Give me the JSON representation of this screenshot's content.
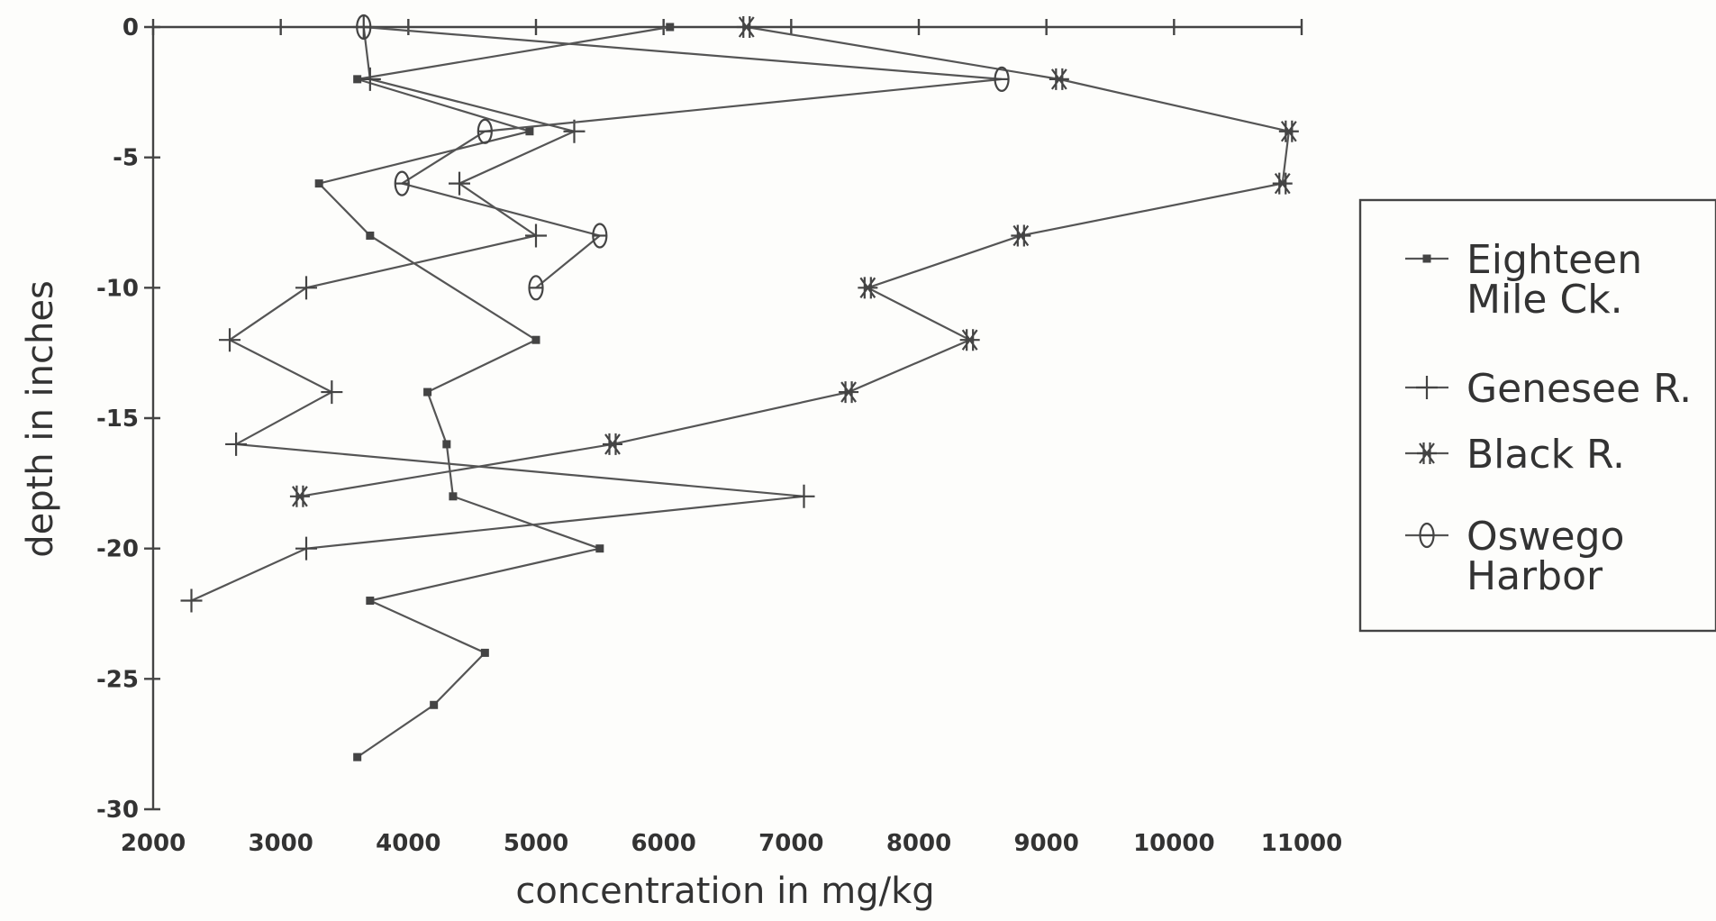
{
  "chart_data": {
    "type": "line",
    "xlabel": "concentration in mg/kg",
    "ylabel": "depth in inches",
    "xlim": [
      2000,
      11000
    ],
    "ylim": [
      -30,
      0
    ],
    "x_ticks": [
      2000,
      3000,
      4000,
      5000,
      6000,
      7000,
      8000,
      9000,
      10000,
      11000
    ],
    "y_ticks": [
      0,
      -5,
      -10,
      -15,
      -20,
      -25,
      -30
    ],
    "x_tick_labels": [
      "2000",
      "3000",
      "4000",
      "5000",
      "6000",
      "7000",
      "8000",
      "9000",
      "10000",
      "11000"
    ],
    "y_tick_labels": [
      "0",
      "-5",
      "-10",
      "-15",
      "-20",
      "-25",
      "-30"
    ],
    "grid": false,
    "legend_position": "right",
    "series": [
      {
        "name": "Eighteen Mile Ck.",
        "legend_lines": [
          "Eighteen",
          "Mile Ck."
        ],
        "marker": "square",
        "points": [
          [
            6050,
            0
          ],
          [
            3600,
            -2
          ],
          [
            4950,
            -4
          ],
          [
            3300,
            -6
          ],
          [
            3700,
            -8
          ],
          [
            5000,
            -12
          ],
          [
            4150,
            -14
          ],
          [
            4300,
            -16
          ],
          [
            4350,
            -18
          ],
          [
            5500,
            -20
          ],
          [
            3700,
            -22
          ],
          [
            4600,
            -24
          ],
          [
            4200,
            -26
          ],
          [
            3600,
            -28
          ]
        ]
      },
      {
        "name": "Genesee R.",
        "legend_lines": [
          "Genesee R."
        ],
        "marker": "plus",
        "points": [
          [
            3650,
            0
          ],
          [
            3700,
            -2
          ],
          [
            5300,
            -4
          ],
          [
            4400,
            -6
          ],
          [
            5000,
            -8
          ],
          [
            3200,
            -10
          ],
          [
            2600,
            -12
          ],
          [
            3400,
            -14
          ],
          [
            2650,
            -16
          ],
          [
            7100,
            -18
          ],
          [
            3200,
            -20
          ],
          [
            2300,
            -22
          ]
        ]
      },
      {
        "name": "Black R.",
        "legend_lines": [
          "Black R."
        ],
        "marker": "asterisk",
        "points": [
          [
            6650,
            0
          ],
          [
            9100,
            -2
          ],
          [
            10900,
            -4
          ],
          [
            10850,
            -6
          ],
          [
            8800,
            -8
          ],
          [
            7600,
            -10
          ],
          [
            8400,
            -12
          ],
          [
            7450,
            -14
          ],
          [
            5600,
            -16
          ],
          [
            3150,
            -18
          ]
        ]
      },
      {
        "name": "Oswego Harbor",
        "legend_lines": [
          "Oswego",
          "Harbor"
        ],
        "marker": "diamond",
        "points": [
          [
            3650,
            0
          ],
          [
            8650,
            -2
          ],
          [
            4600,
            -4
          ],
          [
            3950,
            -6
          ],
          [
            5500,
            -8
          ],
          [
            5000,
            -10
          ]
        ]
      }
    ]
  },
  "colors": {
    "line": "#555555",
    "text": "#333333",
    "background": "#fdfdfb"
  }
}
